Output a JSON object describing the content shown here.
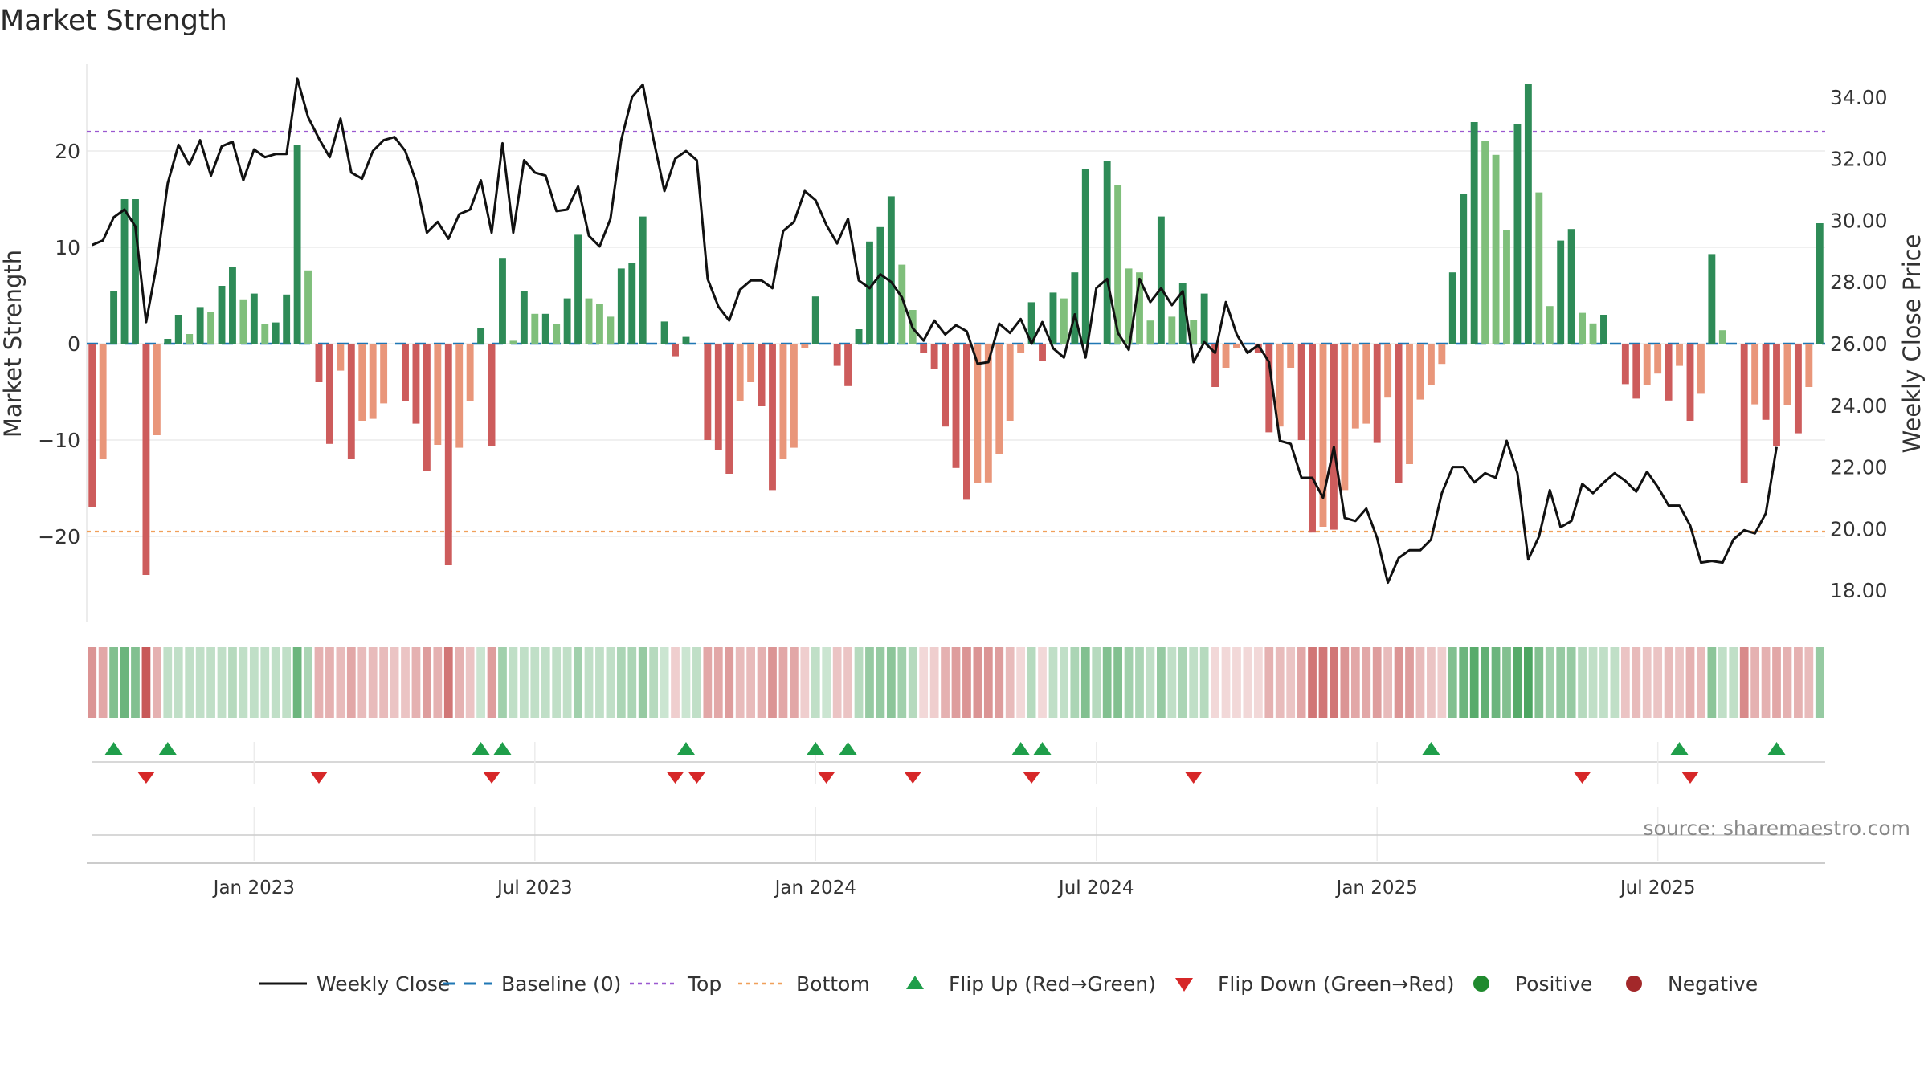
{
  "chart_data": {
    "type": "bar",
    "title": "Market Strength",
    "ylabel": "Market Strength",
    "y2label": "Weekly Close Price",
    "ylim": [
      -29,
      29
    ],
    "y2lim": [
      17.2,
      35.4
    ],
    "yticks": [
      20,
      10,
      0,
      -10,
      -20
    ],
    "ytick_labels": [
      "20",
      "10",
      "0",
      "−10",
      "−20"
    ],
    "y2ticks": [
      34,
      32,
      30,
      28,
      26,
      24,
      22,
      20,
      18
    ],
    "y2tick_labels": [
      "34.00",
      "32.00",
      "30.00",
      "28.00",
      "26.00",
      "24.00",
      "22.00",
      "20.00",
      "18.00"
    ],
    "top_level": 22,
    "bottom_level": -19.5,
    "baseline": 0,
    "x_start": "2022-09-18",
    "x_end": "2025-09-14",
    "date_ticks": [
      {
        "label": "Jan 2023",
        "week": 15
      },
      {
        "label": "Jul 2023",
        "week": 41
      },
      {
        "label": "Jan 2024",
        "week": 67
      },
      {
        "label": "Jul 2024",
        "week": 93
      },
      {
        "label": "Jan 2025",
        "week": 119
      },
      {
        "label": "Jul 2025",
        "week": 145
      }
    ],
    "strength": [
      -17,
      -12,
      5.5,
      15,
      15,
      -24,
      -9.5,
      0.5,
      3,
      1,
      3.8,
      3.3,
      6,
      8,
      4.6,
      5.2,
      2,
      2.2,
      5.1,
      20.6,
      7.6,
      -4,
      -10.4,
      -2.8,
      -12,
      -8,
      -7.8,
      -6.2,
      0,
      -6,
      -8.3,
      -13.2,
      -10.5,
      -23,
      -10.8,
      -6,
      1.6,
      -10.6,
      8.9,
      0.3,
      5.5,
      3.1,
      3.1,
      2,
      4.7,
      11.3,
      4.7,
      4.1,
      2.8,
      7.8,
      8.4,
      13.2,
      0,
      2.3,
      -1.3,
      0.7,
      0,
      -10,
      -11,
      -13.5,
      -6,
      -4,
      -6.5,
      -15.2,
      -12,
      -10.8,
      -0.5,
      4.9,
      0,
      -2.3,
      -4.4,
      1.5,
      10.6,
      12.1,
      15.3,
      8.2,
      3.5,
      -1,
      -2.6,
      -8.6,
      -12.9,
      -16.2,
      -14.5,
      -14.4,
      -11.5,
      -8,
      -1,
      4.3,
      -1.8,
      5.3,
      4.7,
      7.4,
      18.1,
      0,
      19,
      16.5,
      7.8,
      7.4,
      2.4,
      13.2,
      2.8,
      6.3,
      2.5,
      5.2,
      -4.5,
      -2.5,
      -0.5,
      0,
      -1,
      -9.2,
      -8.6,
      -2.5,
      -10,
      -19.6,
      -19,
      -19.3,
      -15.2,
      -8.8,
      -8.3,
      -10.3,
      -5.6,
      -14.5,
      -12.5,
      -5.8,
      -4.3,
      -2.1,
      7.4,
      15.5,
      23,
      21,
      19.6,
      11.8,
      22.8,
      27,
      15.7,
      3.9,
      10.7,
      11.9,
      3.2,
      2.1,
      3,
      0,
      -4.2,
      -5.7,
      -4.3,
      -3.1,
      -5.9,
      -2.3,
      -8,
      -5.2,
      9.3,
      1.4,
      0,
      -14.5,
      -6.3,
      -7.9,
      -10.6,
      -6.4,
      -9.3,
      -4.5,
      12.5
    ],
    "weekly_close": [
      29.2,
      29.35,
      30.1,
      30.35,
      29.8,
      26.7,
      28.6,
      31.2,
      32.45,
      31.8,
      32.6,
      31.45,
      32.4,
      32.55,
      31.3,
      32.3,
      32.05,
      32.15,
      32.15,
      34.6,
      33.35,
      32.65,
      32.05,
      33.3,
      31.55,
      31.35,
      32.25,
      32.6,
      32.7,
      32.25,
      31.25,
      29.6,
      29.95,
      29.4,
      30.2,
      30.35,
      31.3,
      29.6,
      32.5,
      29.6,
      31.95,
      31.55,
      31.45,
      30.3,
      30.35,
      31.1,
      29.5,
      29.15,
      30.05,
      32.6,
      34.0,
      34.4,
      32.6,
      30.95,
      32.0,
      32.25,
      31.95,
      28.1,
      27.2,
      26.75,
      27.75,
      28.05,
      28.05,
      27.8,
      29.65,
      29.95,
      30.95,
      30.65,
      29.85,
      29.25,
      30.05,
      28.05,
      27.8,
      28.25,
      28.0,
      27.5,
      26.5,
      26.1,
      26.75,
      26.3,
      26.6,
      26.4,
      25.35,
      25.4,
      26.65,
      26.35,
      26.8,
      26.0,
      26.7,
      25.85,
      25.55,
      26.95,
      25.55,
      27.8,
      28.1,
      26.35,
      25.8,
      28.1,
      27.35,
      27.8,
      27.25,
      27.7,
      25.4,
      26.05,
      25.7,
      27.35,
      26.3,
      25.7,
      25.95,
      25.4,
      22.85,
      22.75,
      21.65,
      21.65,
      21.0,
      22.65,
      20.35,
      20.25,
      20.65,
      19.7,
      18.25,
      19.05,
      19.3,
      19.3,
      19.65,
      21.15,
      22.0,
      22.0,
      21.5,
      21.8,
      21.65,
      22.85,
      21.8,
      19.0,
      19.75,
      21.25,
      20.05,
      20.25,
      21.45,
      21.15,
      21.5,
      21.8,
      21.55,
      21.2,
      21.85,
      21.35,
      20.75,
      20.75,
      20.1,
      18.9,
      18.95,
      18.9,
      19.65,
      19.95,
      19.85,
      20.5,
      22.65
    ],
    "strip_intensity": [
      -0.55,
      -0.45,
      0.6,
      0.7,
      0.6,
      -0.85,
      -0.4,
      0.3,
      0.3,
      0.3,
      0.3,
      0.3,
      0.3,
      0.35,
      0.3,
      0.3,
      0.3,
      0.3,
      0.3,
      0.7,
      0.4,
      -0.4,
      -0.4,
      -0.35,
      -0.45,
      -0.35,
      -0.35,
      -0.35,
      -0.3,
      -0.3,
      -0.4,
      -0.5,
      -0.4,
      -0.7,
      -0.4,
      -0.3,
      0.25,
      -0.5,
      0.45,
      0.3,
      0.3,
      0.3,
      0.3,
      0.3,
      0.3,
      0.45,
      0.3,
      0.3,
      0.3,
      0.4,
      0.4,
      0.5,
      0.35,
      0.25,
      -0.25,
      0.25,
      0.3,
      -0.45,
      -0.45,
      -0.5,
      -0.35,
      -0.35,
      -0.4,
      -0.55,
      -0.45,
      -0.45,
      -0.25,
      0.3,
      0.25,
      -0.3,
      -0.3,
      0.35,
      0.5,
      0.5,
      0.55,
      0.45,
      0.35,
      -0.2,
      -0.25,
      -0.4,
      -0.5,
      -0.55,
      -0.55,
      -0.55,
      -0.5,
      -0.35,
      -0.2,
      0.35,
      -0.2,
      0.3,
      0.3,
      0.4,
      0.6,
      0.35,
      0.6,
      0.6,
      0.45,
      0.4,
      0.3,
      0.5,
      0.3,
      0.4,
      0.3,
      0.35,
      -0.2,
      -0.2,
      -0.2,
      -0.2,
      -0.2,
      -0.4,
      -0.35,
      -0.3,
      -0.45,
      -0.7,
      -0.7,
      -0.7,
      -0.55,
      -0.45,
      -0.45,
      -0.5,
      -0.35,
      -0.55,
      -0.5,
      -0.35,
      -0.3,
      -0.25,
      0.6,
      0.7,
      0.8,
      0.75,
      0.7,
      0.6,
      0.8,
      0.85,
      0.6,
      0.45,
      0.5,
      0.5,
      0.35,
      0.3,
      0.3,
      0.3,
      -0.3,
      -0.35,
      -0.3,
      -0.3,
      -0.35,
      -0.3,
      -0.4,
      -0.35,
      0.55,
      0.3,
      0.3,
      -0.6,
      -0.4,
      -0.4,
      -0.45,
      -0.4,
      -0.4,
      -0.35,
      0.5
    ],
    "flip_up_weeks": [
      2,
      7,
      36,
      38,
      55,
      67,
      70,
      86,
      88,
      124,
      147,
      156
    ],
    "flip_down_weeks": [
      5,
      21,
      37,
      54,
      56,
      68,
      76,
      87,
      102,
      138,
      148
    ],
    "legend": [
      {
        "label": "Weekly Close",
        "kind": "line",
        "color": "#111111"
      },
      {
        "label": "Baseline (0)",
        "kind": "dash",
        "color": "#1f77b4"
      },
      {
        "label": "Top",
        "kind": "dot",
        "color": "#9b59d0"
      },
      {
        "label": "Bottom",
        "kind": "dot",
        "color": "#f0a05a"
      },
      {
        "label": "Flip Up (Red→Green)",
        "kind": "tri-up",
        "color": "#1f9e4a"
      },
      {
        "label": "Flip Down (Green→Red)",
        "kind": "tri-down",
        "color": "#d62728"
      },
      {
        "label": "Positive",
        "kind": "circle",
        "color": "#1f8a2e"
      },
      {
        "label": "Negative",
        "kind": "circle",
        "color": "#a3282a"
      }
    ],
    "source": "source: sharemaestro.com"
  }
}
